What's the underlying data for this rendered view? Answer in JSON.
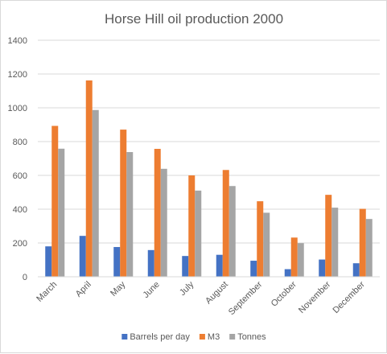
{
  "chart_data": {
    "type": "bar",
    "title": "Horse Hill oil production 2000",
    "xlabel": "",
    "ylabel": "",
    "categories": [
      "March",
      "April",
      "May",
      "June",
      "July",
      "August",
      "September",
      "October",
      "November",
      "December"
    ],
    "series": [
      {
        "name": "Barrels per day",
        "color": "#4472c4",
        "values": [
          180,
          242,
          176,
          158,
          123,
          130,
          95,
          45,
          102,
          80
        ]
      },
      {
        "name": "M3",
        "color": "#ed7d31",
        "values": [
          893,
          1162,
          871,
          757,
          600,
          632,
          447,
          232,
          485,
          402
        ]
      },
      {
        "name": "Tonnes",
        "color": "#a5a5a5",
        "values": [
          758,
          987,
          738,
          639,
          510,
          537,
          379,
          199,
          409,
          342
        ]
      }
    ],
    "ylim": [
      0,
      1400
    ],
    "yticks": [
      0,
      200,
      400,
      600,
      800,
      1000,
      1200,
      1400
    ],
    "grid": true,
    "legend_position": "bottom"
  }
}
